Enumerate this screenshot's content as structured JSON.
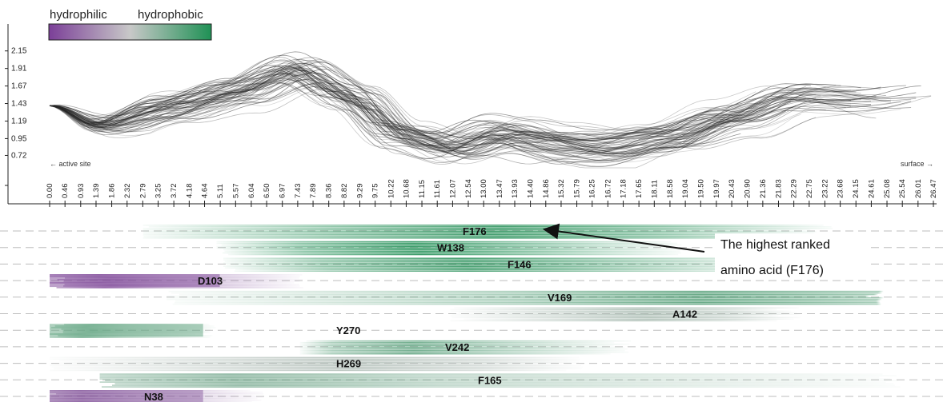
{
  "chart_data": {
    "type": "line",
    "legend": {
      "left_label": "hydrophilic",
      "right_label": "hydrophobic",
      "colors": [
        "#7b3f98",
        "#c8c8c8",
        "#1f9155"
      ]
    },
    "y_ticks": [
      "2.15",
      "1.91",
      "1.67",
      "1.43",
      "1.19",
      "0.95",
      "0.72"
    ],
    "y_tick_values": [
      2.15,
      1.91,
      1.67,
      1.43,
      1.19,
      0.95,
      0.72
    ],
    "x_ticks": [
      "0.00",
      "0.46",
      "0.93",
      "1.39",
      "1.86",
      "2.32",
      "2.79",
      "3.25",
      "3.72",
      "4.18",
      "4.64",
      "5.11",
      "5.57",
      "6.04",
      "6.50",
      "6.97",
      "7.43",
      "7.89",
      "8.36",
      "8.82",
      "9.29",
      "9.75",
      "10.22",
      "10.68",
      "11.15",
      "11.61",
      "12.07",
      "12.54",
      "13.00",
      "13.47",
      "13.93",
      "14.40",
      "14.86",
      "15.32",
      "15.79",
      "16.25",
      "16.72",
      "17.18",
      "17.65",
      "18.11",
      "18.58",
      "19.04",
      "19.50",
      "19.97",
      "20.43",
      "20.90",
      "21.36",
      "21.83",
      "22.29",
      "22.75",
      "23.22",
      "23.68",
      "24.15",
      "24.61",
      "25.08",
      "25.54",
      "26.01",
      "26.47"
    ],
    "xlim": [
      0,
      26.47
    ],
    "ylim": [
      0.55,
      2.3
    ],
    "x_start_label": "← active site",
    "x_end_label": "surface →",
    "profile_trend": {
      "x": [
        0,
        1.5,
        3.5,
        5.5,
        7.4,
        9.0,
        10.5,
        12.0,
        13.5,
        15.0,
        16.5,
        18.5,
        20.5,
        22.5,
        24.5,
        26.47
      ],
      "y": [
        1.4,
        1.12,
        1.35,
        1.55,
        1.85,
        1.5,
        0.98,
        0.8,
        0.98,
        0.85,
        0.78,
        0.92,
        1.2,
        1.5,
        1.48,
        1.55
      ]
    },
    "residues": [
      {
        "name": "F176",
        "hydrophobicity": 0.85,
        "start": 2.8,
        "end": 23.5,
        "peak": 13.5
      },
      {
        "name": "W138",
        "hydrophobicity": 0.9,
        "start": 5.0,
        "end": 19.0,
        "peak": 11.0
      },
      {
        "name": "F146",
        "hydrophobicity": 0.8,
        "start": 5.2,
        "end": 22.5,
        "peak": 12.5
      },
      {
        "name": "D103",
        "hydrophobicity": -0.85,
        "start": 0.0,
        "end": 7.7,
        "peak": 1.5
      },
      {
        "name": "V169",
        "hydrophobicity": 0.6,
        "start": 3.5,
        "end": 25.0,
        "peak": 19.5
      },
      {
        "name": "A142",
        "hydrophobicity": 0.15,
        "start": 12.0,
        "end": 22.5,
        "peak": 18.0
      },
      {
        "name": "Y270",
        "hydrophobicity": 0.55,
        "start": 0.0,
        "end": 5.0,
        "peak": 1.0
      },
      {
        "name": "V242",
        "hydrophobicity": 0.55,
        "start": 7.5,
        "end": 17.5,
        "peak": 11.0
      },
      {
        "name": "H269",
        "hydrophobicity": 0.1,
        "start": 0.0,
        "end": 16.0,
        "peak": 9.0
      },
      {
        "name": "F165",
        "hydrophobicity": 0.4,
        "start": 1.5,
        "end": 25.5,
        "peak": 5.5
      },
      {
        "name": "N38",
        "hydrophobicity": -0.7,
        "start": 0.0,
        "end": 6.5,
        "peak": 1.0
      }
    ],
    "annotation": {
      "line1": "The highest ranked",
      "line2": "amino acid (F176)",
      "target": "F176"
    }
  }
}
